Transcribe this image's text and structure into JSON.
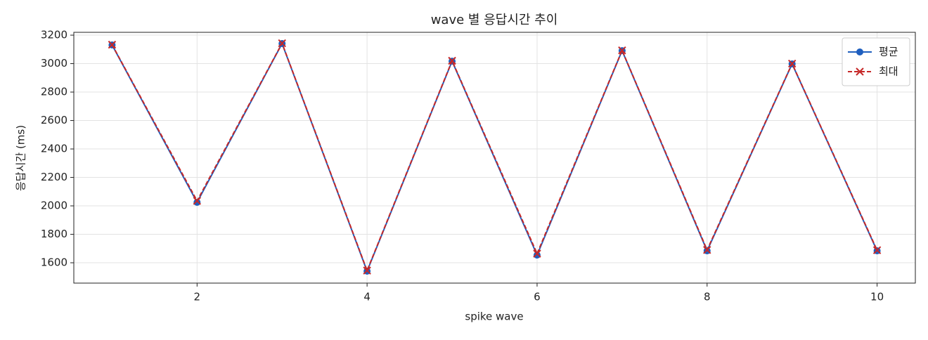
{
  "chart_data": {
    "type": "line",
    "title": "wave 별 응답시간 추이",
    "xlabel": "spike wave",
    "ylabel": "응답시간 (ms)",
    "x": [
      1,
      2,
      3,
      4,
      5,
      6,
      7,
      8,
      9,
      10
    ],
    "series": [
      {
        "name": "평균",
        "color": "#1f5fbf",
        "marker": "circle",
        "dash": "solid",
        "values": [
          3131,
          2025,
          3141,
          1541,
          3017,
          1654,
          3091,
          1684,
          2998,
          1684
        ]
      },
      {
        "name": "최대",
        "color": "#c62828",
        "marker": "x",
        "dash": "dashed",
        "values": [
          3133,
          2035,
          3143,
          1545,
          3020,
          1664,
          3093,
          1690,
          3000,
          1688
        ]
      }
    ],
    "xlim": [
      0.55,
      10.45
    ],
    "ylim": [
      1457,
      3220
    ],
    "xticks": [
      2,
      4,
      6,
      8,
      10
    ],
    "yticks": [
      1600,
      1800,
      2000,
      2200,
      2400,
      2600,
      2800,
      3000,
      3200
    ],
    "grid": true,
    "legend": "upper right"
  }
}
